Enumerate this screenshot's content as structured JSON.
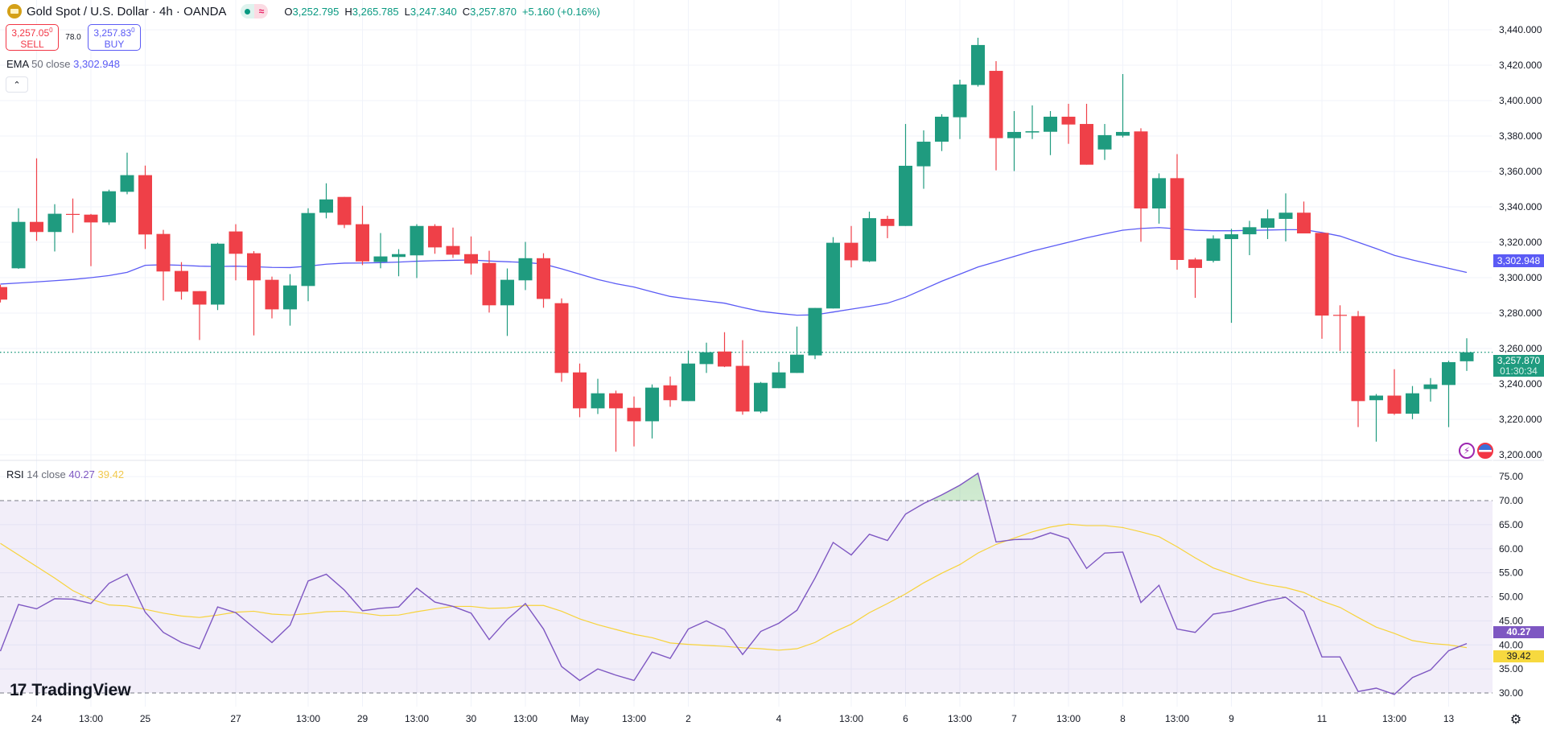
{
  "header": {
    "title": "Gold Spot / U.S. Dollar · 4h · OANDA",
    "approx_icon": "≈",
    "ohlc": {
      "o_label": "O",
      "o": "3,252.795",
      "h_label": "H",
      "h": "3,265.785",
      "l_label": "L",
      "l": "3,247.340",
      "c_label": "C",
      "c": "3,257.870",
      "change": "+5.160 (+0.16%)"
    }
  },
  "trade": {
    "sell_price": "3,257.05",
    "sell_sup": "0",
    "sell_label": "SELL",
    "spread": "78.0",
    "buy_price": "3,257.83",
    "buy_sup": "0",
    "buy_label": "BUY"
  },
  "indicators": {
    "ema": {
      "name": "EMA",
      "params": "50 close",
      "value": "3,302.948"
    },
    "rsi": {
      "name": "RSI",
      "params": "14 close",
      "value": "40.27",
      "ma_value": "39.42"
    }
  },
  "collapse_icon": "chevron-up",
  "badges": {
    "ema": "3,302.948",
    "last_price": "3,257.870",
    "countdown": "01:30:34",
    "rsi": "40.27",
    "rsi_ma": "39.42"
  },
  "logo": "TradingView",
  "colors": {
    "up": "#1f9b7f",
    "down": "#ef4048",
    "ema": "#5b5bf5",
    "rsi": "#7e57c2",
    "rsi_ma": "#f7d33b",
    "rsi_band": "#7e57c2"
  },
  "chart_data": {
    "type": "candlestick",
    "interval": "4h",
    "price_axis": {
      "ylim": [
        3200,
        3440
      ],
      "tick_labels": [
        "3,440.000",
        "3,420.000",
        "3,400.000",
        "3,380.000",
        "3,360.000",
        "3,340.000",
        "3,320.000",
        "3,300.000",
        "3,280.000",
        "3,260.000",
        "3,240.000",
        "3,220.000",
        "3,200.000"
      ],
      "ticks": [
        3440,
        3420,
        3400,
        3380,
        3360,
        3340,
        3320,
        3300,
        3280,
        3260,
        3240,
        3220,
        3200
      ]
    },
    "rsi_axis": {
      "tick_labels": [
        "75.00",
        "70.00",
        "65.00",
        "60.00",
        "55.00",
        "50.00",
        "45.00",
        "40.00",
        "35.00",
        "30.00"
      ],
      "ticks": [
        75,
        70,
        65,
        60,
        55,
        50,
        45,
        40,
        35,
        30
      ],
      "levels": [
        70,
        50,
        30
      ]
    },
    "x_labels": [
      {
        "index": 2,
        "label": "24"
      },
      {
        "index": 5,
        "label": "13:00"
      },
      {
        "index": 8,
        "label": "25"
      },
      {
        "index": 13,
        "label": "27"
      },
      {
        "index": 17,
        "label": "13:00"
      },
      {
        "index": 20,
        "label": "29"
      },
      {
        "index": 23,
        "label": "13:00"
      },
      {
        "index": 26,
        "label": "30"
      },
      {
        "index": 29,
        "label": "13:00"
      },
      {
        "index": 32,
        "label": "May"
      },
      {
        "index": 35,
        "label": "13:00"
      },
      {
        "index": 38,
        "label": "2"
      },
      {
        "index": 43,
        "label": "4"
      },
      {
        "index": 47,
        "label": "13:00"
      },
      {
        "index": 50,
        "label": "6"
      },
      {
        "index": 53,
        "label": "13:00"
      },
      {
        "index": 56,
        "label": "7"
      },
      {
        "index": 59,
        "label": "13:00"
      },
      {
        "index": 62,
        "label": "8"
      },
      {
        "index": 65,
        "label": "13:00"
      },
      {
        "index": 68,
        "label": "9"
      },
      {
        "index": 73,
        "label": "11"
      },
      {
        "index": 77,
        "label": "13:00"
      },
      {
        "index": 80,
        "label": "13"
      }
    ],
    "candles_ohlc": [
      [
        3294.7,
        3296,
        3286,
        3287.6
      ],
      [
        3305.3,
        3339.2,
        3305,
        3331.5
      ],
      [
        3331.5,
        3367.4,
        3320.8,
        3325.8
      ],
      [
        3325.8,
        3341.5,
        3314.8,
        3336.1
      ],
      [
        3336,
        3344.7,
        3325.3,
        3335.9
      ],
      [
        3335.6,
        3336,
        3306.5,
        3331.2
      ],
      [
        3331.2,
        3349.7,
        3329.8,
        3348.8
      ],
      [
        3348.5,
        3370.6,
        3347.1,
        3357.9
      ],
      [
        3357.9,
        3363.3,
        3316.2,
        3324.4
      ],
      [
        3324.7,
        3327,
        3287.1,
        3303.5
      ],
      [
        3303.8,
        3308.8,
        3287.6,
        3292.1
      ],
      [
        3292.4,
        3292.4,
        3264.8,
        3284.8
      ],
      [
        3284.8,
        3319.7,
        3281.7,
        3319.2
      ],
      [
        3326.1,
        3330.2,
        3298.5,
        3313.5
      ],
      [
        3313.8,
        3315,
        3267.4,
        3298.5
      ],
      [
        3298.8,
        3300.6,
        3277,
        3282.1
      ],
      [
        3282.1,
        3302,
        3272.9,
        3295.6
      ],
      [
        3295.3,
        3339.2,
        3286.7,
        3336.5
      ],
      [
        3336.7,
        3353.3,
        3333.5,
        3344.2
      ],
      [
        3345.6,
        3345.6,
        3328,
        3329.8
      ],
      [
        3330.2,
        3340.6,
        3307.1,
        3309.2
      ],
      [
        3308.9,
        3325.2,
        3305.3,
        3312
      ],
      [
        3311.7,
        3316.1,
        3300.8,
        3313.3
      ],
      [
        3312.6,
        3330.2,
        3299.8,
        3329.2
      ],
      [
        3329.2,
        3330.2,
        3313.5,
        3317.1
      ],
      [
        3317.9,
        3328.3,
        3311.2,
        3313
      ],
      [
        3313.3,
        3323.3,
        3301.7,
        3308
      ],
      [
        3308.3,
        3315.2,
        3280.3,
        3284.4
      ],
      [
        3284.4,
        3305.2,
        3267.1,
        3298.8
      ],
      [
        3298.5,
        3320.2,
        3293,
        3311
      ],
      [
        3311,
        3313.8,
        3283,
        3288
      ],
      [
        3285.6,
        3288.3,
        3241.2,
        3246.2
      ],
      [
        3246.5,
        3251.5,
        3221.2,
        3226.2
      ],
      [
        3226.2,
        3242.9,
        3223,
        3234.7
      ],
      [
        3234.7,
        3236.2,
        3201.7,
        3226.2
      ],
      [
        3226.5,
        3232.9,
        3204.7,
        3218.9
      ],
      [
        3218.9,
        3239.7,
        3209.2,
        3237.9
      ],
      [
        3239.2,
        3244.2,
        3227.1,
        3230.8
      ],
      [
        3230.3,
        3258.8,
        3230.3,
        3251.5
      ],
      [
        3251.2,
        3263.3,
        3246.2,
        3257.9
      ],
      [
        3258.3,
        3269.2,
        3249.5,
        3249.8
      ],
      [
        3250.2,
        3264.7,
        3222.6,
        3224.4
      ],
      [
        3224.4,
        3241.1,
        3223.5,
        3240.6
      ],
      [
        3237.6,
        3252.4,
        3237.6,
        3246.5
      ],
      [
        3246.2,
        3272.4,
        3246.2,
        3256.5
      ],
      [
        3256.1,
        3282.9,
        3254,
        3282.9
      ],
      [
        3282.6,
        3322.9,
        3282.6,
        3319.7
      ],
      [
        3319.7,
        3329.2,
        3305.8,
        3309.8
      ],
      [
        3309.2,
        3337.3,
        3308.8,
        3333.6
      ],
      [
        3333.2,
        3335,
        3322.3,
        3329.2
      ],
      [
        3329.2,
        3386.8,
        3329.2,
        3363.2
      ],
      [
        3362.9,
        3383.2,
        3350.2,
        3376.8
      ],
      [
        3376.8,
        3392.3,
        3371.5,
        3390.9
      ],
      [
        3390.6,
        3411.8,
        3378.3,
        3409.1
      ],
      [
        3408.8,
        3435.5,
        3407.9,
        3431.4
      ],
      [
        3416.8,
        3422.3,
        3360.6,
        3378.8
      ],
      [
        3378.8,
        3394.1,
        3360.2,
        3382.3
      ],
      [
        3382,
        3397.3,
        3378.3,
        3382.7
      ],
      [
        3382.4,
        3394.1,
        3369.2,
        3390.9
      ],
      [
        3390.9,
        3398.2,
        3375.6,
        3386.5
      ],
      [
        3386.8,
        3398.2,
        3363.8,
        3363.8
      ],
      [
        3372.4,
        3386.8,
        3366.5,
        3380.5
      ],
      [
        3380.2,
        3415,
        3379.2,
        3382.3
      ],
      [
        3382.6,
        3384.4,
        3320.3,
        3339.1
      ],
      [
        3339.1,
        3358.9,
        3330.5,
        3356.2
      ],
      [
        3356.2,
        3369.8,
        3304.5,
        3310
      ],
      [
        3310.3,
        3311.2,
        3288.6,
        3305.5
      ],
      [
        3309.5,
        3323.9,
        3308.6,
        3322.1
      ],
      [
        3321.8,
        3327.6,
        3274.5,
        3324.5
      ],
      [
        3324.5,
        3332.1,
        3312.7,
        3328.5
      ],
      [
        3328.2,
        3338.5,
        3321.8,
        3333.5
      ],
      [
        3333.2,
        3347.6,
        3320.5,
        3336.7
      ],
      [
        3336.7,
        3343,
        3325,
        3325
      ],
      [
        3325.3,
        3325.3,
        3265.5,
        3278.6
      ],
      [
        3279,
        3284.4,
        3258.6,
        3278.8
      ],
      [
        3278.3,
        3281.2,
        3215.6,
        3230.3
      ],
      [
        3230.8,
        3234.3,
        3207.4,
        3233.4
      ],
      [
        3233.4,
        3248.3,
        3222.5,
        3223.2
      ],
      [
        3223.2,
        3238.8,
        3220.1,
        3234.7
      ],
      [
        3237.1,
        3243.3,
        3230,
        3239.7
      ],
      [
        3239.4,
        3253.1,
        3215.6,
        3252.3
      ],
      [
        3252.795,
        3265.785,
        3247.34,
        3257.87
      ]
    ],
    "ema50": [
      3296.4,
      3297.0,
      3297.6,
      3298.3,
      3299.0,
      3300.0,
      3301.2,
      3303.0,
      3307.0,
      3307.3,
      3307.0,
      3306.5,
      3306.3,
      3306.5,
      3306.2,
      3305.8,
      3305.7,
      3306.5,
      3307.6,
      3308.2,
      3308.3,
      3308.5,
      3308.8,
      3309.3,
      3309.6,
      3309.8,
      3310.0,
      3309.4,
      3309.0,
      3308.6,
      3307.7,
      3305.0,
      3302.0,
      3299.0,
      3296.6,
      3294.7,
      3292.0,
      3289.4,
      3288.0,
      3286.8,
      3285.6,
      3283.2,
      3281.0,
      3279.8,
      3278.8,
      3279.0,
      3280.6,
      3282.2,
      3283.8,
      3285.6,
      3289.0,
      3293.5,
      3298.0,
      3302.0,
      3306.0,
      3309.0,
      3312.0,
      3315.0,
      3317.5,
      3320.0,
      3322.5,
      3324.7,
      3326.8,
      3327.8,
      3328.3,
      3327.6,
      3326.8,
      3326.5,
      3326.5,
      3326.7,
      3326.9,
      3327.1,
      3327.1,
      3325.5,
      3323.5,
      3320.0,
      3316.4,
      3312.6,
      3310.0,
      3307.6,
      3305.3,
      3302.948
    ],
    "rsi14": [
      38.7,
      48.4,
      47.5,
      49.6,
      49.5,
      48.6,
      52.8,
      54.7,
      46.8,
      42.6,
      40.5,
      39.2,
      47.9,
      46.7,
      43.6,
      40.5,
      44.1,
      53.3,
      54.7,
      51.4,
      47.1,
      47.6,
      47.9,
      51.8,
      48.9,
      48.0,
      46.6,
      41.1,
      45.3,
      48.6,
      43.3,
      35.5,
      32.6,
      35.0,
      33.7,
      32.6,
      38.5,
      37.2,
      43.3,
      45.0,
      43.2,
      38.0,
      42.8,
      44.5,
      47.2,
      53.9,
      61.3,
      58.7,
      63.0,
      61.7,
      67.2,
      69.4,
      71.2,
      73.2,
      75.7,
      61.4,
      61.9,
      62.0,
      63.3,
      62.1,
      55.9,
      59.1,
      59.3,
      48.8,
      52.4,
      43.3,
      42.6,
      46.4,
      47.0,
      48.1,
      49.2,
      49.9,
      47.0,
      37.5,
      37.5,
      30.3,
      31.0,
      29.7,
      33.2,
      34.8,
      38.8,
      40.27
    ],
    "rsi_ma": [
      61.1,
      58.7,
      56.3,
      53.9,
      51.3,
      49.5,
      48.3,
      48.1,
      47.4,
      46.6,
      46.0,
      45.7,
      46.2,
      46.8,
      47.0,
      46.4,
      46.2,
      46.5,
      46.9,
      47.0,
      46.6,
      46.1,
      46.2,
      46.9,
      47.5,
      48.0,
      48.0,
      47.6,
      47.7,
      48.2,
      48.2,
      47.0,
      45.4,
      44.2,
      43.2,
      42.2,
      41.5,
      40.4,
      40.1,
      39.9,
      39.7,
      39.4,
      39.2,
      38.9,
      39.2,
      40.5,
      42.6,
      44.3,
      46.7,
      48.6,
      50.6,
      52.9,
      54.9,
      56.7,
      59.1,
      60.9,
      62.2,
      63.5,
      64.5,
      65.1,
      64.8,
      64.8,
      64.4,
      63.5,
      62.5,
      60.4,
      58.1,
      56.0,
      54.7,
      53.4,
      52.5,
      51.9,
      50.9,
      49.1,
      47.8,
      45.7,
      43.7,
      42.4,
      40.9,
      40.3,
      40.0,
      39.42
    ],
    "last_price": 3257.87,
    "grid": true
  }
}
